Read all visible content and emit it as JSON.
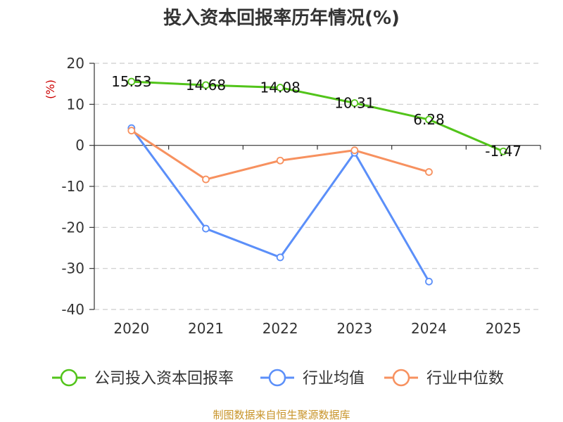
{
  "chart_data": {
    "type": "line",
    "title": "投入资本回报率历年情况(%)",
    "ylabel": "(%)",
    "ylim": [
      -40,
      20
    ],
    "yticks": [
      20,
      10,
      0,
      -10,
      -20,
      -30,
      -40
    ],
    "categories": [
      "2020",
      "2021",
      "2022",
      "2023",
      "2024",
      "2025"
    ],
    "grid": true,
    "legend_position": "bottom",
    "series": [
      {
        "name": "公司投入资本回报率",
        "color": "#52c41a",
        "values": [
          15.53,
          14.68,
          14.08,
          10.31,
          6.28,
          -1.47
        ],
        "labels": [
          "15.53",
          "14.68",
          "14.08",
          "10.31",
          "6.28",
          "-1.47"
        ]
      },
      {
        "name": "行业均值",
        "color": "#5b8ff9",
        "values": [
          4.2,
          -20.3,
          -27.3,
          -1.8,
          -33.2,
          null
        ]
      },
      {
        "name": "行业中位数",
        "color": "#f7915f",
        "values": [
          3.6,
          -8.3,
          -3.7,
          -1.2,
          -6.5,
          null
        ]
      }
    ]
  },
  "source_text": "制图数据来自恒生聚源数据库",
  "colors": {
    "axis": "#333333",
    "grid": "#cccccc",
    "unit": "#cc0000",
    "source": "#c8942a"
  }
}
